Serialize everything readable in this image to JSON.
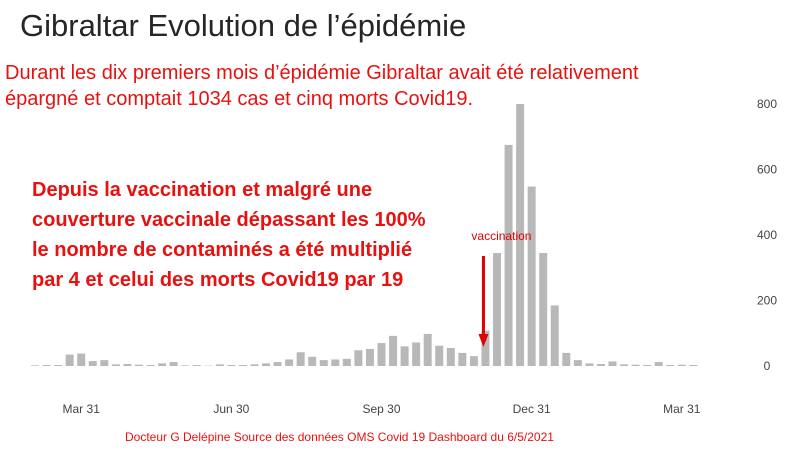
{
  "slide": {
    "title": "Gibraltar Evolution de l’épidémie",
    "intro_lines": [
      "Durant les dix premiers mois d’épidémie Gibraltar avait été relativement",
      "épargné et comptait 1034 cas et cinq morts Covid19."
    ],
    "callout_lines": [
      "Depuis la vaccination  et malgré une",
      "couverture vaccinale dépassant les 100%",
      "le nombre de contaminés a été multiplié",
      "par 4 et celui des morts Covid19 par 19"
    ],
    "footer": "Docteur G Delépine  Source des données OMS Covid 19 Dashboard du 6/5/2021"
  },
  "colors": {
    "text_red": "#e8110f",
    "title": "#262626",
    "bar": "#b8b8b8",
    "arrow": "#e00000",
    "axis_text": "#444444"
  },
  "chart_data": {
    "type": "bar",
    "title": "",
    "xlabel": "",
    "ylabel": "",
    "x_tick_labels": [
      "Mar 31",
      "Jun 30",
      "Sep 30",
      "Dec 31",
      "Mar 31"
    ],
    "x_tick_week_index": [
      4,
      17,
      30,
      43,
      56
    ],
    "y_ticks": [
      0,
      200,
      400,
      600,
      800
    ],
    "ylim": [
      0,
      800
    ],
    "y_axis_side": "right",
    "grid": false,
    "annotation": {
      "label": "vaccination",
      "week_index": 39
    },
    "values": [
      2,
      0,
      3,
      35,
      38,
      15,
      18,
      5,
      6,
      4,
      3,
      8,
      12,
      2,
      0,
      1,
      5,
      0,
      0,
      5,
      8,
      12,
      20,
      42,
      28,
      18,
      20,
      22,
      48,
      52,
      70,
      92,
      60,
      72,
      98,
      62,
      55,
      40,
      30,
      108,
      345,
      675,
      800,
      548,
      345,
      185,
      40,
      18,
      8,
      6,
      14,
      5,
      4,
      3,
      12,
      0,
      4,
      0
    ]
  }
}
